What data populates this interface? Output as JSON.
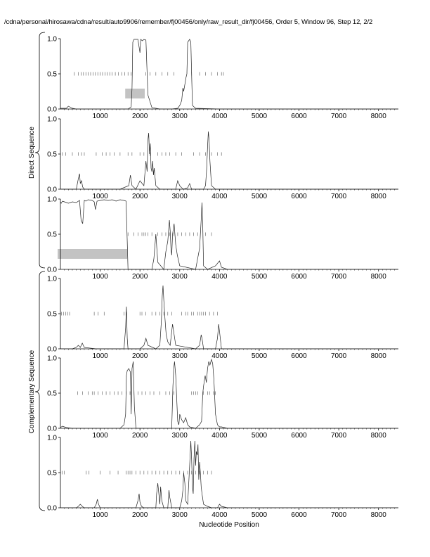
{
  "title": "/cdna/personal/hirosawa/cdna/result/auto9906/remember/fj00456/only/raw_result_dir/fj00456, Order 5, Window 96, Step 12, 2/2",
  "xlabel": "Nucleotide Position",
  "group_labels": {
    "direct": "Direct Sequence",
    "complementary": "Complementary Sequence"
  },
  "chart_data": [
    {
      "type": "line",
      "panel": 1,
      "group": "direct",
      "xlim": [
        0,
        8500
      ],
      "ylim": [
        0,
        1
      ],
      "xticks": [
        1000,
        2000,
        3000,
        4000,
        5000,
        6000,
        7000,
        8000
      ],
      "yticks": [
        "0.0",
        "0.5",
        "1.0"
      ],
      "series": [
        {
          "x": [
            0,
            150,
            200,
            300,
            400,
            700,
            1000,
            1400,
            1700,
            1780,
            1800,
            1820,
            1850,
            1900,
            1950,
            2000,
            2020,
            2060,
            2100,
            2150,
            2200,
            2300,
            2500,
            2800,
            2950,
            3000,
            3050,
            3080,
            3100,
            3130,
            3160,
            3180,
            3200,
            3250,
            3280,
            3300,
            3320,
            3400,
            4000,
            5000,
            6000,
            7000,
            8000,
            8500
          ],
          "y": [
            0.01,
            0.01,
            0.04,
            0.01,
            0.0,
            0.0,
            0.0,
            0.0,
            0.0,
            0.03,
            0.3,
            0.95,
            0.99,
            0.99,
            0.99,
            0.8,
            0.99,
            0.97,
            0.99,
            0.98,
            0.2,
            0.02,
            0.0,
            0.0,
            0.01,
            0.05,
            0.12,
            0.3,
            0.25,
            0.35,
            0.45,
            0.5,
            0.95,
            0.99,
            0.95,
            0.5,
            0.05,
            0.01,
            0.0,
            0.0,
            0.0,
            0.0,
            0.0,
            0.0
          ]
        }
      ],
      "ticks_row_y": 0.5,
      "ticks_x": [
        350,
        450,
        520,
        580,
        640,
        700,
        760,
        820,
        880,
        940,
        1000,
        1060,
        1120,
        1180,
        1240,
        1300,
        1380,
        1460,
        1540,
        1620,
        1700,
        1780,
        2150,
        2250,
        2400,
        2550,
        2700,
        2850,
        3300,
        3500,
        3650,
        3800,
        3950,
        4050,
        4100
      ],
      "highlight": {
        "x_start": 1700,
        "x_end": 2120,
        "y_low": 0.15,
        "y_high": 0.29
      }
    },
    {
      "type": "line",
      "panel": 2,
      "group": "direct",
      "xlim": [
        0,
        8500
      ],
      "ylim": [
        0,
        1
      ],
      "xticks": [
        1000,
        2000,
        3000,
        4000,
        5000,
        6000,
        7000,
        8000
      ],
      "yticks": [
        "0.0",
        "0.5",
        "1.0"
      ],
      "series": [
        {
          "x": [
            0,
            400,
            450,
            480,
            500,
            530,
            560,
            600,
            900,
            1000,
            1500,
            1720,
            1760,
            1800,
            1900,
            2000,
            2100,
            2150,
            2180,
            2200,
            2220,
            2240,
            2260,
            2280,
            2300,
            2320,
            2340,
            2360,
            2400,
            2500,
            2900,
            2950,
            3000,
            3050,
            3100,
            3200,
            3250,
            3300,
            3600,
            3650,
            3680,
            3700,
            3720,
            3740,
            3760,
            3800,
            3900,
            4000,
            5000,
            6000,
            7000,
            8000,
            8500
          ],
          "y": [
            0.0,
            0.0,
            0.15,
            0.22,
            0.08,
            0.12,
            0.03,
            0.0,
            0.0,
            0.0,
            0.0,
            0.05,
            0.2,
            0.05,
            0.0,
            0.12,
            0.05,
            0.4,
            0.25,
            0.7,
            0.8,
            0.5,
            0.65,
            0.3,
            0.25,
            0.4,
            0.2,
            0.3,
            0.05,
            0.0,
            0.0,
            0.12,
            0.05,
            0.02,
            0.0,
            0.02,
            0.08,
            0.0,
            0.0,
            0.05,
            0.3,
            0.6,
            0.82,
            0.7,
            0.4,
            0.05,
            0.0,
            0.0,
            0.0,
            0.0,
            0.0,
            0.0,
            0.0
          ]
        }
      ],
      "ticks_row_y": 0.5,
      "ticks_x": [
        50,
        130,
        300,
        450,
        530,
        600,
        900,
        1050,
        1150,
        1250,
        1350,
        1500,
        1700,
        1800,
        2000,
        2100,
        2250,
        2450,
        2550,
        2650,
        2750,
        2900,
        3050,
        3350,
        3500,
        3650,
        3800,
        3950,
        4050
      ]
    },
    {
      "type": "line",
      "panel": 3,
      "group": "direct",
      "xlim": [
        0,
        8500
      ],
      "ylim": [
        0,
        1
      ],
      "xticks": [
        1000,
        2000,
        3000,
        4000,
        5000,
        6000,
        7000,
        8000
      ],
      "yticks": [
        "0.0",
        "0.5",
        "1.0"
      ],
      "series": [
        {
          "x": [
            0,
            20,
            50,
            100,
            200,
            300,
            400,
            480,
            520,
            560,
            600,
            640,
            700,
            800,
            850,
            880,
            920,
            1000,
            1100,
            1200,
            1300,
            1400,
            1500,
            1600,
            1650,
            1680,
            1700,
            1900,
            2300,
            2350,
            2400,
            2450,
            2600,
            2650,
            2700,
            2740,
            2760,
            2780,
            2800,
            2820,
            2860,
            2900,
            2940,
            3000,
            3400,
            3500,
            3540,
            3560,
            3580,
            3600,
            3700,
            3900,
            4000,
            4050,
            4200,
            5000,
            6000,
            7000,
            8000,
            8500
          ],
          "y": [
            0.96,
            0.94,
            0.97,
            0.96,
            0.94,
            0.96,
            0.95,
            0.98,
            0.7,
            0.65,
            0.98,
            0.97,
            0.99,
            0.98,
            0.96,
            0.85,
            0.97,
            0.98,
            0.99,
            0.98,
            0.99,
            0.97,
            0.99,
            0.98,
            0.97,
            0.4,
            0.0,
            0.0,
            0.0,
            0.15,
            0.5,
            0.1,
            0.0,
            0.25,
            0.4,
            0.7,
            0.55,
            0.3,
            0.2,
            0.5,
            0.65,
            0.35,
            0.2,
            0.05,
            0.0,
            0.3,
            0.7,
            0.95,
            0.6,
            0.05,
            0.0,
            0.05,
            0.12,
            0.03,
            0.0,
            0.0,
            0.0,
            0.0,
            0.0,
            0.0
          ]
        }
      ],
      "ticks_row_y": 0.5,
      "ticks_x": [
        1700,
        1850,
        1950,
        2050,
        2100,
        2150,
        2200,
        2300,
        2450,
        2550,
        2650,
        2750,
        2850,
        2950,
        3050,
        3150,
        3250,
        3350,
        3450,
        3650,
        3800
      ],
      "highlight": {
        "x_start": 0,
        "x_end": 1680,
        "y_low": 0.15,
        "y_high": 0.29
      }
    },
    {
      "type": "line",
      "panel": 4,
      "group": "complementary",
      "xlim": [
        0,
        8500
      ],
      "ylim": [
        0,
        1
      ],
      "xticks": [
        1000,
        2000,
        3000,
        4000,
        5000,
        6000,
        7000,
        8000
      ],
      "yticks": [
        "0.0",
        "0.5",
        "1.0"
      ],
      "series": [
        {
          "x": [
            0,
            300,
            400,
            450,
            500,
            550,
            600,
            900,
            1000,
            1600,
            1640,
            1660,
            1680,
            1700,
            2000,
            2100,
            2150,
            2200,
            2400,
            2500,
            2540,
            2560,
            2580,
            2600,
            2620,
            2640,
            2660,
            2700,
            2760,
            2800,
            2820,
            2900,
            3400,
            3500,
            3540,
            3560,
            3600,
            3900,
            3950,
            3980,
            4000,
            4050,
            4200,
            5000,
            6000,
            7000,
            8000,
            8500
          ],
          "y": [
            0.0,
            0.0,
            0.02,
            0.05,
            0.02,
            0.08,
            0.02,
            0.0,
            0.0,
            0.0,
            0.3,
            0.6,
            0.15,
            0.0,
            0.0,
            0.05,
            0.15,
            0.05,
            0.0,
            0.05,
            0.4,
            0.75,
            0.9,
            0.7,
            0.5,
            0.35,
            0.2,
            0.1,
            0.05,
            0.25,
            0.35,
            0.05,
            0.0,
            0.05,
            0.2,
            0.15,
            0.0,
            0.0,
            0.15,
            0.35,
            0.25,
            0.0,
            0.0,
            0.0,
            0.0,
            0.0,
            0.0,
            0.0
          ]
        }
      ],
      "ticks_row_y": 0.5,
      "ticks_x": [
        30,
        80,
        130,
        180,
        230,
        850,
        950,
        1100,
        1600,
        1650,
        2000,
        2050,
        2150,
        2300,
        2400,
        2500,
        2600,
        2700,
        2800,
        3050,
        3150,
        3200,
        3300,
        3350,
        3450,
        3500,
        3550,
        3600,
        3650,
        3750,
        3850,
        3950
      ]
    },
    {
      "type": "line",
      "panel": 5,
      "group": "complementary",
      "xlim": [
        0,
        8500
      ],
      "ylim": [
        0,
        1
      ],
      "xticks": [
        1000,
        2000,
        3000,
        4000,
        5000,
        6000,
        7000,
        8000
      ],
      "yticks": [
        "0.0",
        "0.5",
        "1.0"
      ],
      "series": [
        {
          "x": [
            0,
            50,
            150,
            300,
            600,
            900,
            1000,
            1500,
            1600,
            1640,
            1660,
            1680,
            1720,
            1760,
            1780,
            1800,
            1830,
            1860,
            1900,
            2400,
            2500,
            2800,
            2830,
            2850,
            2870,
            2900,
            2950,
            2980,
            3000,
            3050,
            3100,
            3150,
            3200,
            3250,
            3400,
            3500,
            3550,
            3580,
            3600,
            3640,
            3670,
            3700,
            3730,
            3760,
            3800,
            3830,
            3860,
            3900,
            3950,
            4000,
            4050,
            4200,
            5000,
            6000,
            7000,
            8000,
            8500
          ],
          "y": [
            0.01,
            0.03,
            0.01,
            0.0,
            0.0,
            0.0,
            0.0,
            0.0,
            0.05,
            0.2,
            0.75,
            0.82,
            0.85,
            0.8,
            0.2,
            0.85,
            0.95,
            0.3,
            0.0,
            0.0,
            0.0,
            0.0,
            0.6,
            0.85,
            0.95,
            0.75,
            0.1,
            0.05,
            0.2,
            0.12,
            0.08,
            0.15,
            0.05,
            0.02,
            0.0,
            0.05,
            0.1,
            0.5,
            0.6,
            0.75,
            0.65,
            0.85,
            0.95,
            0.9,
            0.98,
            0.92,
            0.7,
            0.2,
            0.05,
            0.02,
            0.02,
            0.0,
            0.0,
            0.0,
            0.0,
            0.0,
            0.0
          ]
        }
      ],
      "ticks_row_y": 0.5,
      "ticks_x": [
        430,
        560,
        700,
        800,
        850,
        950,
        1050,
        1150,
        1250,
        1350,
        1450,
        1550,
        1650,
        1750,
        1850,
        1950,
        2050,
        2150,
        2250,
        2350,
        2500,
        2650,
        2750,
        2850,
        3300,
        3350,
        3400,
        3450,
        3600,
        3700,
        3750,
        3850,
        3900
      ]
    },
    {
      "type": "line",
      "panel": 6,
      "group": "complementary",
      "xlim": [
        0,
        8500
      ],
      "ylim": [
        0,
        1
      ],
      "xticks": [
        1000,
        2000,
        3000,
        4000,
        5000,
        6000,
        7000,
        8000
      ],
      "yticks": [
        "0.0",
        "0.5",
        "1.0"
      ],
      "series": [
        {
          "x": [
            0,
            400,
            450,
            500,
            550,
            600,
            850,
            900,
            930,
            960,
            1000,
            1900,
            1950,
            1980,
            2000,
            2040,
            2100,
            2400,
            2420,
            2450,
            2500,
            2520,
            2550,
            2600,
            2700,
            2730,
            2750,
            2800,
            3000,
            3050,
            3080,
            3100,
            3130,
            3150,
            3200,
            3250,
            3280,
            3300,
            3320,
            3340,
            3360,
            3380,
            3400,
            3420,
            3440,
            3460,
            3480,
            3500,
            3520,
            3540,
            3560,
            3600,
            3700,
            3800,
            3950,
            4000,
            4050,
            4200,
            5000,
            6000,
            7000,
            8000,
            8500
          ],
          "y": [
            0.0,
            0.0,
            0.02,
            0.05,
            0.02,
            0.0,
            0.0,
            0.05,
            0.12,
            0.05,
            0.0,
            0.0,
            0.1,
            0.2,
            0.08,
            0.02,
            0.0,
            0.0,
            0.2,
            0.35,
            0.05,
            0.3,
            0.1,
            0.0,
            0.0,
            0.25,
            0.15,
            0.0,
            0.0,
            0.1,
            0.25,
            0.5,
            0.35,
            0.1,
            0.05,
            0.6,
            0.95,
            0.7,
            0.3,
            0.2,
            0.7,
            0.95,
            0.6,
            0.8,
            0.75,
            0.9,
            0.4,
            0.65,
            0.5,
            0.3,
            0.2,
            0.05,
            0.02,
            0.0,
            0.0,
            0.05,
            0.02,
            0.0,
            0.0,
            0.0,
            0.0,
            0.0,
            0.0
          ]
        }
      ],
      "ticks_row_y": 0.5,
      "ticks_x": [
        40,
        100,
        650,
        720,
        1000,
        1250,
        1450,
        1650,
        1700,
        1750,
        1800,
        1900,
        2000,
        2100,
        2200,
        2300,
        2400,
        2500,
        2600,
        2700,
        2800,
        2900,
        3000,
        3100,
        3200,
        3300,
        3400,
        3500,
        3600,
        3700,
        3800
      ]
    }
  ]
}
